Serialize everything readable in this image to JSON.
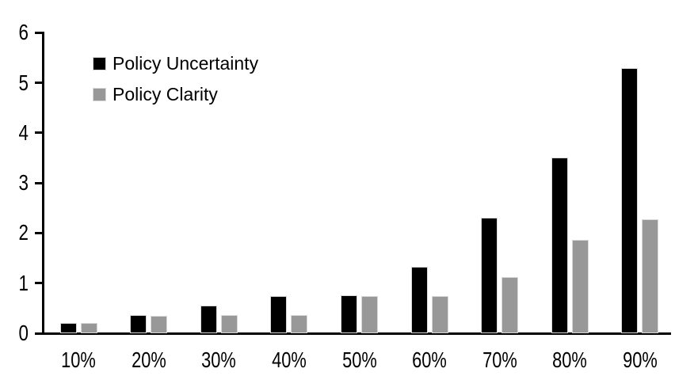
{
  "chart_data": {
    "type": "bar",
    "title": "",
    "xlabel": "",
    "ylabel": "",
    "categories": [
      "10%",
      "20%",
      "30%",
      "40%",
      "50%",
      "60%",
      "70%",
      "80%",
      "90%"
    ],
    "series": [
      {
        "name": "Policy Uncertainty",
        "color": "#000000",
        "values": [
          0.2,
          0.36,
          0.55,
          0.75,
          0.76,
          1.33,
          2.3,
          3.5,
          5.3
        ]
      },
      {
        "name": "Policy Clarity",
        "color": "#989898",
        "values": [
          0.2,
          0.35,
          0.36,
          0.37,
          0.75,
          0.75,
          1.12,
          1.87,
          2.28
        ]
      }
    ],
    "yticks": [
      0,
      1,
      2,
      3,
      4,
      5,
      6
    ],
    "ylim": [
      0,
      6
    ],
    "grid": false,
    "legend_position": "top-left",
    "axis_color": "#000000",
    "bar_outline_color": "#d9d9d9"
  }
}
